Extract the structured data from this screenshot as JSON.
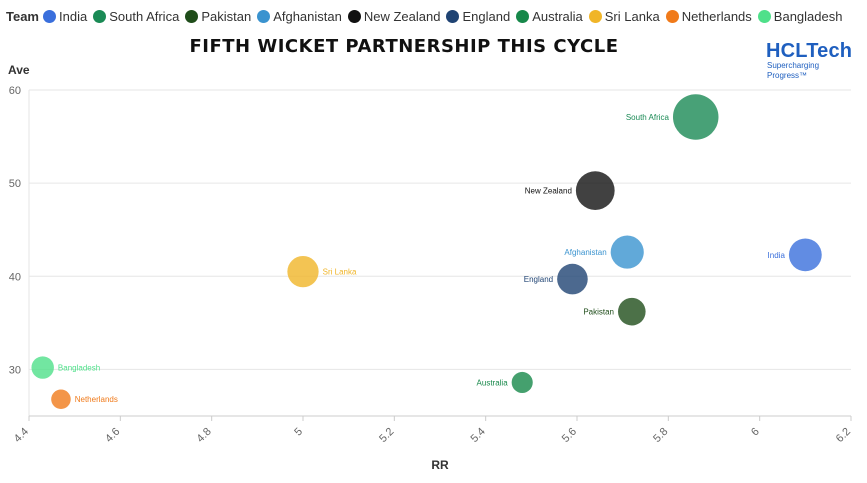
{
  "legend": {
    "title": "Team",
    "items": [
      {
        "label": "India",
        "color": "#3a6fdc"
      },
      {
        "label": "South Africa",
        "color": "#1a8a55"
      },
      {
        "label": "Pakistan",
        "color": "#1f4d1a"
      },
      {
        "label": "Afghanistan",
        "color": "#3a93cf"
      },
      {
        "label": "New Zealand",
        "color": "#111111"
      },
      {
        "label": "England",
        "color": "#1f4373"
      },
      {
        "label": "Australia",
        "color": "#17884a"
      },
      {
        "label": "Sri Lanka",
        "color": "#f0b528"
      },
      {
        "label": "Netherlands",
        "color": "#f07a1a"
      },
      {
        "label": "Bangladesh",
        "color": "#4fe08a"
      }
    ]
  },
  "brand": {
    "name": "HCLTech",
    "tagline": "Supercharging Progress™"
  },
  "chart_data": {
    "type": "scatter",
    "title": "Fifth wicket partnership this cycle",
    "xlabel": "RR",
    "ylabel": "Ave",
    "xlim": [
      4.4,
      6.2
    ],
    "ylim": [
      25,
      60
    ],
    "xticks": [
      "4.4",
      "4.6",
      "4.8",
      "5",
      "5.2",
      "5.4",
      "5.6",
      "5.8",
      "6",
      "6.2"
    ],
    "yticks": [
      "30",
      "40",
      "50",
      "60"
    ],
    "grid": "horizontal",
    "legend_position": "top",
    "points": [
      {
        "team": "India",
        "x": 6.1,
        "y": 42.3,
        "color": "#3a6fdc",
        "label_side": "left"
      },
      {
        "team": "South Africa",
        "x": 5.86,
        "y": 57.1,
        "color": "#1a8a55",
        "label_side": "left"
      },
      {
        "team": "Pakistan",
        "x": 5.72,
        "y": 36.2,
        "color": "#1f4d1a",
        "label_side": "left"
      },
      {
        "team": "Afghanistan",
        "x": 5.71,
        "y": 42.6,
        "color": "#3a93cf",
        "label_side": "left"
      },
      {
        "team": "New Zealand",
        "x": 5.64,
        "y": 49.2,
        "color": "#111111",
        "label_side": "left"
      },
      {
        "team": "England",
        "x": 5.59,
        "y": 39.7,
        "color": "#1f4373",
        "label_side": "left"
      },
      {
        "team": "Australia",
        "x": 5.48,
        "y": 28.6,
        "color": "#17884a",
        "label_side": "left"
      },
      {
        "team": "Sri Lanka",
        "x": 5.0,
        "y": 40.5,
        "color": "#f0b528",
        "label_side": "right"
      },
      {
        "team": "Netherlands",
        "x": 4.47,
        "y": 26.8,
        "color": "#f07a1a",
        "label_side": "right"
      },
      {
        "team": "Bangladesh",
        "x": 4.43,
        "y": 30.2,
        "color": "#4fe08a",
        "label_side": "right"
      }
    ]
  }
}
